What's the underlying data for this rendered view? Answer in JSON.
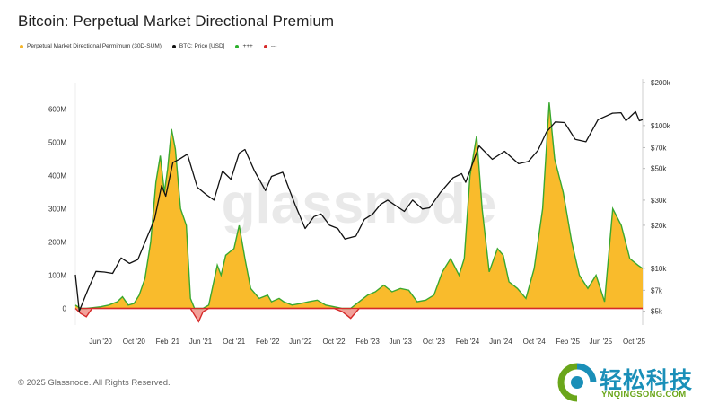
{
  "title": "Bitcoin: Perpetual Market Directional Premium",
  "legend": [
    {
      "label": "Perpetual Market Directional Permimum (30D-SUM)",
      "color": "#f5b52a"
    },
    {
      "label": "BTC: Price [USD]",
      "color": "#111111"
    },
    {
      "label": "+++",
      "color": "#2cb02c"
    },
    {
      "label": "---",
      "color": "#d62a2a"
    }
  ],
  "watermark": "glassnode",
  "footer": "© 2025 Glassnode. All Rights Reserved.",
  "brand": {
    "cn": "轻松科技",
    "en": "YNQINGSONG.COM"
  },
  "colors": {
    "premium_fill": "#f9bb2c",
    "premium_pos_line": "#3aa82f",
    "premium_neg_line": "#d62a2a",
    "price_line": "#111111"
  },
  "chart_data": {
    "type": "area",
    "x_ticks": [
      "Jun '20",
      "Oct '20",
      "Feb '21",
      "Jun '21",
      "Oct '21",
      "Feb '22",
      "Jun '22",
      "Oct '22",
      "Feb '23",
      "Jun '23",
      "Oct '23",
      "Feb '24",
      "Jun '24",
      "Oct '24",
      "Feb '25",
      "Jun '25",
      "Oct '25"
    ],
    "y_left_ticks": [
      "600M",
      "500M",
      "400M",
      "300M",
      "200M",
      "100M",
      "0"
    ],
    "y_right_ticks": [
      "$200k",
      "$100k",
      "$70k",
      "$50k",
      "$30k",
      "$20k",
      "$10k",
      "$7k",
      "$5k"
    ],
    "y_left_range": [
      -50,
      680
    ],
    "y_right_scale": "log",
    "y_right_range": [
      4000,
      200000
    ],
    "x_range": [
      "2020-03",
      "2025-11"
    ],
    "series": [
      {
        "name": "Perpetual Market Directional Permimum (30D-SUM)",
        "unit": "USD M",
        "points": [
          [
            "2020-03-01",
            10
          ],
          [
            "2020-03-20",
            -15
          ],
          [
            "2020-04-10",
            -25
          ],
          [
            "2020-05-01",
            2
          ],
          [
            "2020-06-01",
            5
          ],
          [
            "2020-07-01",
            10
          ],
          [
            "2020-08-01",
            20
          ],
          [
            "2020-08-20",
            35
          ],
          [
            "2020-09-10",
            10
          ],
          [
            "2020-10-01",
            15
          ],
          [
            "2020-10-20",
            40
          ],
          [
            "2020-11-10",
            90
          ],
          [
            "2020-12-01",
            200
          ],
          [
            "2020-12-20",
            380
          ],
          [
            "2021-01-05",
            460
          ],
          [
            "2021-01-20",
            350
          ],
          [
            "2021-02-01",
            420
          ],
          [
            "2021-02-15",
            540
          ],
          [
            "2021-03-01",
            480
          ],
          [
            "2021-03-20",
            300
          ],
          [
            "2021-04-10",
            250
          ],
          [
            "2021-04-25",
            30
          ],
          [
            "2021-05-10",
            -20
          ],
          [
            "2021-05-25",
            -40
          ],
          [
            "2021-06-10",
            -10
          ],
          [
            "2021-07-01",
            10
          ],
          [
            "2021-08-01",
            130
          ],
          [
            "2021-08-15",
            100
          ],
          [
            "2021-09-01",
            160
          ],
          [
            "2021-10-01",
            180
          ],
          [
            "2021-10-20",
            250
          ],
          [
            "2021-11-10",
            150
          ],
          [
            "2021-12-01",
            60
          ],
          [
            "2022-01-01",
            30
          ],
          [
            "2022-02-01",
            40
          ],
          [
            "2022-02-15",
            20
          ],
          [
            "2022-03-15",
            30
          ],
          [
            "2022-04-01",
            20
          ],
          [
            "2022-05-01",
            10
          ],
          [
            "2022-06-01",
            15
          ],
          [
            "2022-07-01",
            20
          ],
          [
            "2022-08-01",
            25
          ],
          [
            "2022-09-01",
            10
          ],
          [
            "2022-10-01",
            5
          ],
          [
            "2022-11-01",
            -10
          ],
          [
            "2022-12-01",
            -30
          ],
          [
            "2023-01-01",
            20
          ],
          [
            "2023-02-01",
            40
          ],
          [
            "2023-03-01",
            50
          ],
          [
            "2023-04-01",
            70
          ],
          [
            "2023-05-01",
            50
          ],
          [
            "2023-06-01",
            60
          ],
          [
            "2023-07-01",
            55
          ],
          [
            "2023-08-01",
            20
          ],
          [
            "2023-09-01",
            25
          ],
          [
            "2023-10-01",
            40
          ],
          [
            "2023-11-01",
            110
          ],
          [
            "2023-12-01",
            150
          ],
          [
            "2024-01-01",
            100
          ],
          [
            "2024-01-20",
            150
          ],
          [
            "2024-02-10",
            400
          ],
          [
            "2024-03-05",
            520
          ],
          [
            "2024-03-25",
            300
          ],
          [
            "2024-04-20",
            110
          ],
          [
            "2024-05-20",
            180
          ],
          [
            "2024-06-10",
            160
          ],
          [
            "2024-07-01",
            80
          ],
          [
            "2024-08-01",
            60
          ],
          [
            "2024-09-01",
            30
          ],
          [
            "2024-10-01",
            120
          ],
          [
            "2024-11-01",
            300
          ],
          [
            "2024-11-25",
            620
          ],
          [
            "2024-12-15",
            450
          ],
          [
            "2025-01-15",
            350
          ],
          [
            "2025-02-15",
            200
          ],
          [
            "2025-03-15",
            100
          ],
          [
            "2025-04-15",
            60
          ],
          [
            "2025-05-15",
            100
          ],
          [
            "2025-06-15",
            20
          ],
          [
            "2025-07-15",
            300
          ],
          [
            "2025-08-15",
            250
          ],
          [
            "2025-09-15",
            150
          ],
          [
            "2025-10-15",
            130
          ],
          [
            "2025-11-01",
            120
          ]
        ]
      },
      {
        "name": "BTC: Price [USD]",
        "unit": "USD",
        "points": [
          [
            "2020-03-01",
            9000
          ],
          [
            "2020-03-15",
            5000
          ],
          [
            "2020-04-15",
            7000
          ],
          [
            "2020-05-15",
            9500
          ],
          [
            "2020-06-15",
            9400
          ],
          [
            "2020-07-15",
            9200
          ],
          [
            "2020-08-15",
            11800
          ],
          [
            "2020-09-15",
            10800
          ],
          [
            "2020-10-15",
            11500
          ],
          [
            "2020-11-15",
            16000
          ],
          [
            "2020-12-15",
            22000
          ],
          [
            "2021-01-10",
            38000
          ],
          [
            "2021-01-25",
            32000
          ],
          [
            "2021-02-20",
            55000
          ],
          [
            "2021-03-15",
            58000
          ],
          [
            "2021-04-14",
            63000
          ],
          [
            "2021-05-20",
            37000
          ],
          [
            "2021-06-20",
            33000
          ],
          [
            "2021-07-20",
            30000
          ],
          [
            "2021-08-20",
            48000
          ],
          [
            "2021-09-20",
            42000
          ],
          [
            "2021-10-20",
            64000
          ],
          [
            "2021-11-10",
            68000
          ],
          [
            "2021-12-15",
            48000
          ],
          [
            "2022-01-24",
            35000
          ],
          [
            "2022-02-15",
            44000
          ],
          [
            "2022-03-28",
            47000
          ],
          [
            "2022-05-12",
            28000
          ],
          [
            "2022-06-18",
            19000
          ],
          [
            "2022-07-20",
            23000
          ],
          [
            "2022-08-15",
            24000
          ],
          [
            "2022-09-15",
            20000
          ],
          [
            "2022-10-15",
            19000
          ],
          [
            "2022-11-10",
            16000
          ],
          [
            "2022-12-20",
            16800
          ],
          [
            "2023-01-20",
            22000
          ],
          [
            "2023-02-20",
            24000
          ],
          [
            "2023-03-20",
            28000
          ],
          [
            "2023-04-15",
            30000
          ],
          [
            "2023-06-15",
            25000
          ],
          [
            "2023-07-15",
            30000
          ],
          [
            "2023-08-20",
            26000
          ],
          [
            "2023-09-15",
            26500
          ],
          [
            "2023-10-25",
            34000
          ],
          [
            "2023-12-10",
            43000
          ],
          [
            "2024-01-10",
            46000
          ],
          [
            "2024-01-25",
            40000
          ],
          [
            "2024-02-28",
            60000
          ],
          [
            "2024-03-14",
            72000
          ],
          [
            "2024-05-01",
            58000
          ],
          [
            "2024-06-15",
            66000
          ],
          [
            "2024-08-05",
            54000
          ],
          [
            "2024-09-10",
            56000
          ],
          [
            "2024-10-15",
            67000
          ],
          [
            "2024-11-15",
            90000
          ],
          [
            "2024-12-17",
            106000
          ],
          [
            "2025-01-20",
            105000
          ],
          [
            "2025-02-28",
            80000
          ],
          [
            "2025-04-08",
            77000
          ],
          [
            "2025-05-22",
            110000
          ],
          [
            "2025-07-14",
            122000
          ],
          [
            "2025-08-14",
            123000
          ],
          [
            "2025-09-01",
            108000
          ],
          [
            "2025-10-06",
            125000
          ],
          [
            "2025-10-20",
            108000
          ],
          [
            "2025-11-01",
            110000
          ]
        ]
      }
    ],
    "grid": true
  }
}
